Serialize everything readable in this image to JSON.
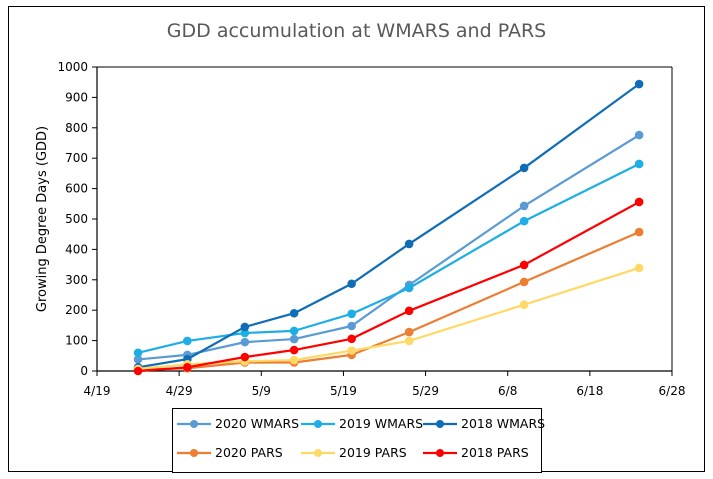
{
  "chart_data": {
    "type": "line",
    "title": "GDD accumulation at WMARS and PARS",
    "xlabel": "",
    "ylabel": "Growing Degree Days (GDD)",
    "x_tick_labels": [
      "4/19",
      "4/29",
      "5/9",
      "5/19",
      "5/29",
      "6/8",
      "6/18",
      "6/28"
    ],
    "x_tick_days": [
      0,
      10,
      20,
      30,
      40,
      50,
      60,
      70
    ],
    "y_tick_labels": [
      "0",
      "100",
      "200",
      "300",
      "400",
      "500",
      "600",
      "700",
      "800",
      "900",
      "1000"
    ],
    "xlim_days_from_4_19": [
      0,
      70
    ],
    "ylim": [
      0,
      1000
    ],
    "grid": false,
    "legend_position": "bottom",
    "x_dates": [
      "4/24",
      "4/30",
      "5/7",
      "5/13",
      "5/20",
      "5/27",
      "6/10",
      "6/24"
    ],
    "x_days": [
      5,
      11,
      18,
      24,
      31,
      38,
      52,
      66
    ],
    "series": [
      {
        "name": "2020 WMARS",
        "color": "#5B9BD5",
        "values": [
          38,
          53,
          95,
          105,
          148,
          283,
          543,
          776
        ]
      },
      {
        "name": "2019 WMARS",
        "color": "#1EAEE6",
        "values": [
          60,
          99,
          125,
          132,
          188,
          273,
          493,
          681
        ]
      },
      {
        "name": "2018 WMARS",
        "color": "#0F6DB8",
        "values": [
          12,
          39,
          145,
          190,
          287,
          418,
          668,
          944
        ]
      },
      {
        "name": "2020 PARS",
        "color": "#ED7D31",
        "values": [
          4,
          9,
          28,
          28,
          53,
          128,
          293,
          457
        ]
      },
      {
        "name": "2019 PARS",
        "color": "#FFD966",
        "values": [
          7,
          22,
          32,
          36,
          67,
          99,
          218,
          339
        ]
      },
      {
        "name": "2018 PARS",
        "color": "#FF0000",
        "values": [
          0,
          12,
          46,
          69,
          106,
          198,
          349,
          556
        ]
      }
    ]
  }
}
